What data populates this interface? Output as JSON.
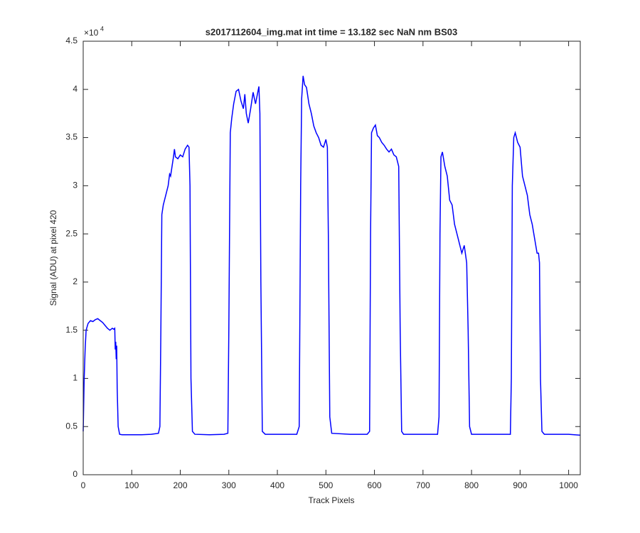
{
  "chart_data": {
    "type": "line",
    "title": "s2017112604_img.mat int time = 13.182 sec  NaN nm BS03",
    "x_label": "Track Pixels",
    "y_label": "Signal (ADU) at pixel 420",
    "y_multiplier_base": "×10",
    "y_multiplier_exponent": "4",
    "xlim": [
      0,
      1024
    ],
    "xticks": [
      0,
      100,
      200,
      300,
      400,
      500,
      600,
      700,
      800,
      900,
      1000
    ],
    "ylim": [
      0,
      4.5
    ],
    "yticks": [
      0,
      0.5,
      1,
      1.5,
      2,
      2.5,
      3,
      3.5,
      4,
      4.5
    ],
    "grid": false,
    "x": [
      0,
      2,
      4,
      6,
      10,
      15,
      20,
      25,
      30,
      35,
      40,
      45,
      50,
      55,
      60,
      63,
      65,
      66,
      67,
      68,
      69,
      70,
      72,
      75,
      80,
      100,
      120,
      140,
      155,
      158,
      160,
      162,
      165,
      170,
      175,
      178,
      180,
      183,
      186,
      188,
      190,
      195,
      200,
      205,
      210,
      215,
      218,
      220,
      222,
      225,
      230,
      260,
      290,
      298,
      300,
      303,
      306,
      310,
      315,
      320,
      325,
      330,
      333,
      336,
      340,
      345,
      350,
      355,
      360,
      362,
      364,
      366,
      369,
      375,
      400,
      440,
      445,
      448,
      450,
      453,
      456,
      460,
      465,
      470,
      475,
      480,
      485,
      490,
      495,
      500,
      503,
      505,
      508,
      512,
      550,
      585,
      590,
      592,
      594,
      598,
      602,
      606,
      610,
      615,
      620,
      625,
      630,
      635,
      640,
      645,
      650,
      653,
      656,
      660,
      700,
      730,
      733,
      735,
      737,
      740,
      745,
      750,
      755,
      760,
      765,
      770,
      775,
      780,
      785,
      790,
      793,
      796,
      800,
      850,
      880,
      882,
      884,
      887,
      890,
      895,
      900,
      905,
      910,
      915,
      920,
      925,
      930,
      935,
      938,
      940,
      942,
      945,
      950,
      1000,
      1024
    ],
    "series": [
      {
        "name": "signal",
        "color": "#0000ff",
        "values": [
          0.45,
          1.0,
          1.3,
          1.5,
          1.57,
          1.6,
          1.59,
          1.61,
          1.62,
          1.6,
          1.58,
          1.55,
          1.52,
          1.5,
          1.52,
          1.51,
          1.52,
          1.3,
          1.38,
          1.2,
          1.34,
          0.9,
          0.5,
          0.42,
          0.415,
          0.415,
          0.415,
          0.42,
          0.43,
          0.5,
          1.5,
          2.7,
          2.8,
          2.9,
          3.0,
          3.12,
          3.1,
          3.2,
          3.3,
          3.38,
          3.3,
          3.28,
          3.32,
          3.3,
          3.38,
          3.42,
          3.4,
          3.0,
          1.0,
          0.45,
          0.42,
          0.415,
          0.42,
          0.43,
          1.5,
          3.55,
          3.7,
          3.85,
          3.98,
          4.0,
          3.88,
          3.8,
          3.95,
          3.75,
          3.65,
          3.8,
          3.97,
          3.85,
          3.98,
          4.03,
          3.75,
          2.0,
          0.45,
          0.42,
          0.42,
          0.42,
          0.5,
          3.0,
          3.9,
          4.14,
          4.05,
          4.02,
          3.85,
          3.75,
          3.62,
          3.55,
          3.5,
          3.42,
          3.4,
          3.48,
          3.4,
          2.5,
          0.6,
          0.43,
          0.42,
          0.42,
          0.45,
          2.5,
          3.55,
          3.6,
          3.63,
          3.52,
          3.5,
          3.45,
          3.42,
          3.38,
          3.35,
          3.38,
          3.32,
          3.3,
          3.2,
          1.5,
          0.45,
          0.42,
          0.42,
          0.42,
          0.6,
          2.5,
          3.3,
          3.35,
          3.2,
          3.1,
          2.85,
          2.8,
          2.6,
          2.5,
          2.4,
          2.3,
          2.38,
          2.2,
          1.5,
          0.5,
          0.42,
          0.42,
          0.42,
          1.0,
          3.0,
          3.5,
          3.55,
          3.45,
          3.4,
          3.1,
          3.0,
          2.9,
          2.7,
          2.6,
          2.45,
          2.3,
          2.3,
          2.2,
          1.0,
          0.45,
          0.42,
          0.42,
          0.41
        ]
      }
    ]
  }
}
